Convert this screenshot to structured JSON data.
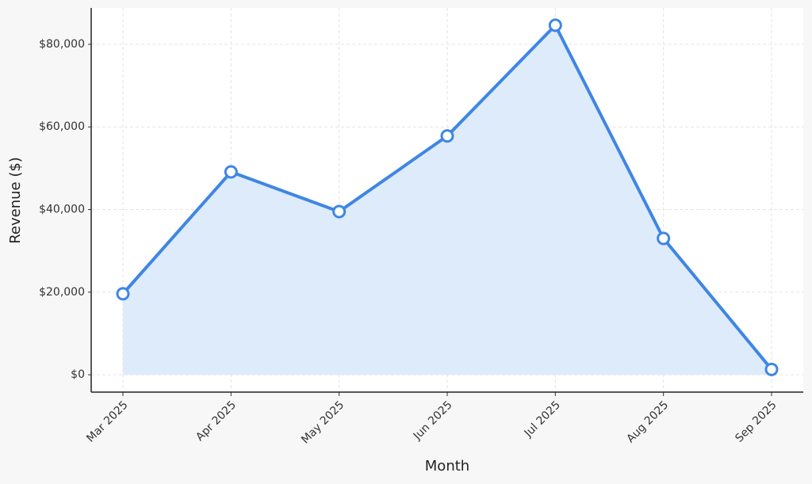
{
  "chart_data": {
    "type": "area",
    "x_label": "Month",
    "y_label": "Revenue ($)",
    "categories": [
      "Mar 2025",
      "Apr 2025",
      "May 2025",
      "Jun 2025",
      "Jul 2025",
      "Aug 2025",
      "Sep 2025"
    ],
    "values": [
      19600,
      49100,
      39500,
      57800,
      84600,
      33000,
      1300
    ],
    "color": "#3f86e4",
    "fill_color": "#deebfb",
    "ylim": [
      -4200,
      88800
    ],
    "yticks": [
      {
        "value": 0,
        "label": "$0"
      },
      {
        "value": 20000,
        "label": "$20,000"
      },
      {
        "value": 40000,
        "label": "$40,000"
      },
      {
        "value": 60000,
        "label": "$60,000"
      },
      {
        "value": 80000,
        "label": "$80,000"
      }
    ],
    "grid": true
  }
}
